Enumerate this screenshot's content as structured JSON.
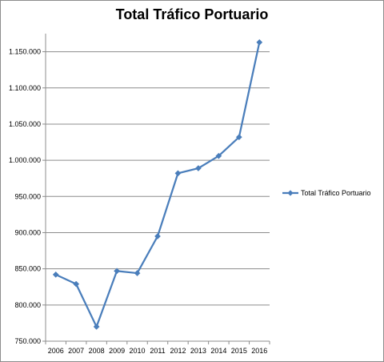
{
  "chart_data": {
    "type": "line",
    "title": "Total Tráfico Portuario",
    "xlabel": "",
    "ylabel": "",
    "categories": [
      "2006",
      "2007",
      "2008",
      "2009",
      "2010",
      "2011",
      "2012",
      "2013",
      "2014",
      "2015",
      "2016"
    ],
    "series": [
      {
        "name": "Total Tráfico Portuario",
        "values": [
          842000,
          829000,
          770000,
          847000,
          844000,
          895000,
          982000,
          989000,
          1006000,
          1032000,
          1163000
        ]
      }
    ],
    "ylim": [
      750000,
      1175000
    ],
    "yticks": [
      750000,
      800000,
      850000,
      900000,
      950000,
      1000000,
      1050000,
      1100000,
      1150000
    ],
    "ytick_labels": [
      "750.000",
      "800.000",
      "850.000",
      "900.000",
      "950.000",
      "1.000.000",
      "1.050.000",
      "1.100.000",
      "1.150.000"
    ],
    "grid": "horizontal",
    "legend": "right",
    "color": "#4a7ebb"
  }
}
